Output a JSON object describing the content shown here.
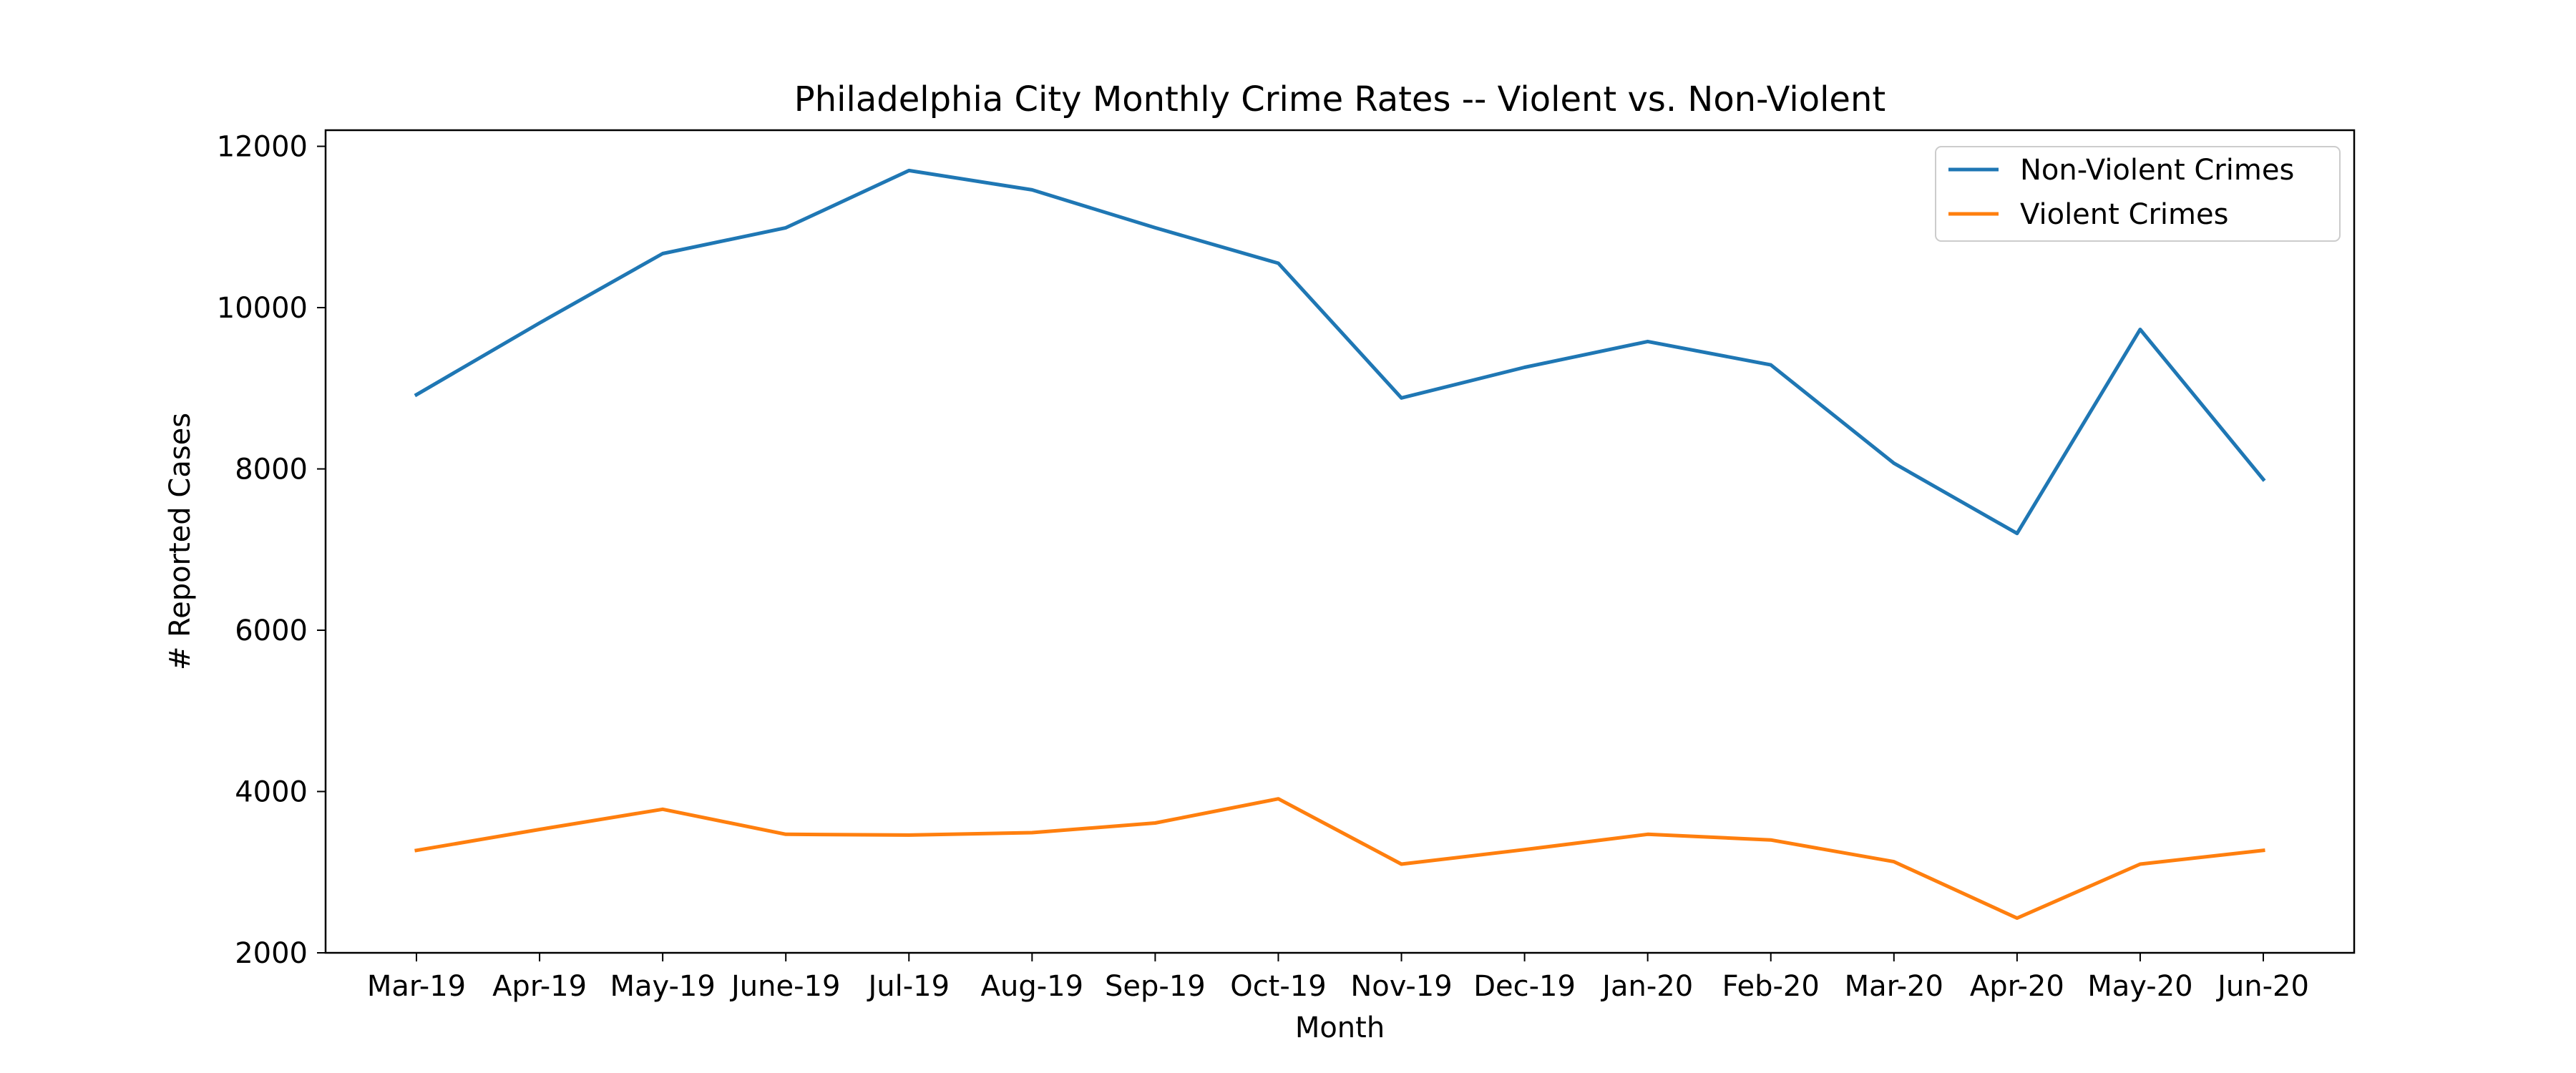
{
  "chart_data": {
    "type": "line",
    "title": "Philadelphia City Monthly Crime Rates -- Violent vs. Non-Violent",
    "xlabel": "Month",
    "ylabel": "# Reported Cases",
    "categories": [
      "Mar-19",
      "Apr-19",
      "May-19",
      "June-19",
      "Jul-19",
      "Aug-19",
      "Sep-19",
      "Oct-19",
      "Nov-19",
      "Dec-19",
      "Jan-20",
      "Feb-20",
      "Mar-20",
      "Apr-20",
      "May-20",
      "Jun-20"
    ],
    "yticks": [
      "2000",
      "4000",
      "6000",
      "8000",
      "10000",
      "12000"
    ],
    "ylim": [
      2000,
      12200
    ],
    "grid": false,
    "legend_position": "top-right",
    "series": [
      {
        "name": "Non-Violent Crimes",
        "color": "#1f77b4",
        "values": [
          8920,
          9810,
          10670,
          10990,
          11700,
          11460,
          10990,
          10550,
          8880,
          9260,
          9580,
          9290,
          8070,
          7200,
          9730,
          7870
        ]
      },
      {
        "name": "Violent Crimes",
        "color": "#ff7f0e",
        "values": [
          3270,
          3530,
          3780,
          3470,
          3460,
          3490,
          3610,
          3910,
          3100,
          3280,
          3470,
          3400,
          3130,
          2430,
          3100,
          3270
        ]
      }
    ]
  }
}
